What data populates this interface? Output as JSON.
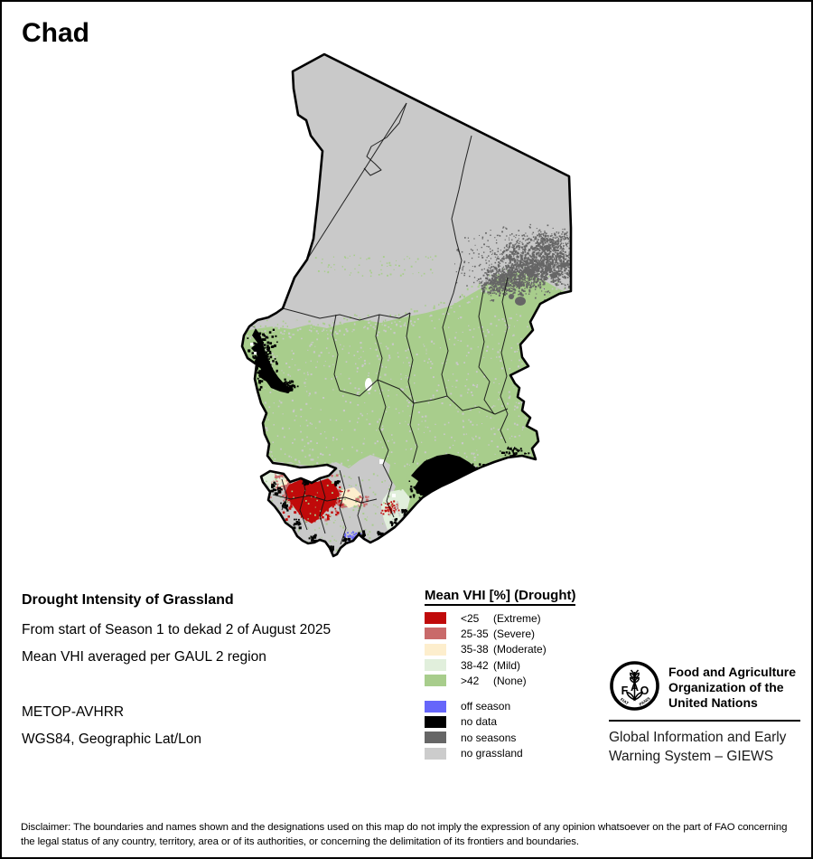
{
  "title": "Chad",
  "info": {
    "heading": "Drought Intensity of Grassland",
    "line1": "From start of Season 1 to dekad 2 of August 2025",
    "line2": "Mean VHI averaged per GAUL 2 region",
    "sensor": "METOP-AVHRR",
    "projection": "WGS84, Geographic Lat/Lon"
  },
  "legend": {
    "title": "Mean VHI [%] (Drought)",
    "classes": [
      {
        "value": "<25",
        "label": "(Extreme)",
        "color": "#c00a0a"
      },
      {
        "value": "25-35",
        "label": "(Severe)",
        "color": "#c96a6a"
      },
      {
        "value": "35-38",
        "label": "(Moderate)",
        "color": "#fdeecd"
      },
      {
        "value": "38-42",
        "label": "(Mild)",
        "color": "#e1efdc"
      },
      {
        "value": ">42",
        "label": "(None)",
        "color": "#a8cd8c"
      }
    ],
    "extras": [
      {
        "label": "off season",
        "color": "#6666fa"
      },
      {
        "label": "no data",
        "color": "#000000"
      },
      {
        "label": "no seasons",
        "color": "#666666"
      },
      {
        "label": "no grassland",
        "color": "#cccccc"
      }
    ]
  },
  "map": {
    "country": "Chad",
    "base_color": "#c9c9c9",
    "border_color": "#000000",
    "water_color": "#ffffff"
  },
  "footer": {
    "fao_letters": [
      "F",
      "A",
      "O"
    ],
    "motto": [
      "FIAT",
      "PANIS"
    ],
    "name_lines": [
      "Food and Agriculture",
      "Organization of the",
      "United Nations"
    ],
    "giews_lines": [
      "Global Information and Early",
      "Warning System – GIEWS"
    ]
  },
  "disclaimer": "Disclaimer: The boundaries and names shown and the designations used on this map do not imply the expression of any opinion whatsoever on the part of FAO concerning the legal status of any country, territory, area or of its authorities, or concerning the delimitation of its frontiers and boundaries."
}
